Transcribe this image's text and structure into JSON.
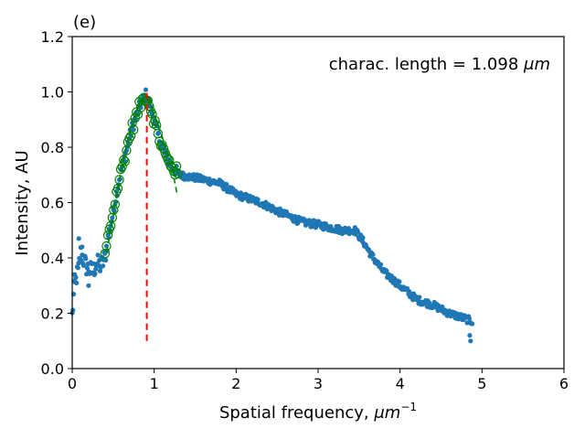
{
  "chart_data": {
    "type": "scatter",
    "panel_label": "(e)",
    "xlabel_text": "Spatial frequency, ",
    "xlabel_unit": "μm",
    "xlabel_exponent": "−1",
    "ylabel": "Intensity, AU",
    "annotation_prefix": "charac. length = 1.098 ",
    "annotation_unit": "μm",
    "xlim": [
      0,
      6
    ],
    "ylim": [
      0,
      1.2
    ],
    "xticks": [
      0,
      1,
      2,
      3,
      4,
      5,
      6
    ],
    "xtick_labels": [
      "0",
      "1",
      "2",
      "3",
      "4",
      "5",
      "6"
    ],
    "yticks": [
      0,
      0.2,
      0.4,
      0.6,
      0.8,
      1.0,
      1.2
    ],
    "ytick_labels": [
      "0.0",
      "0.2",
      "0.4",
      "0.6",
      "0.8",
      "1.0",
      "1.2"
    ],
    "grid": false,
    "colors": {
      "points": "#1f77b4",
      "fit_markers": "#008000",
      "fit_curve": "#008000",
      "peak_line": "#ff0000"
    },
    "peak_line": {
      "x": 0.91,
      "y_from": 0.1,
      "y_to": 1.0
    },
    "anchors": [
      [
        0.0,
        0.19
      ],
      [
        0.02,
        0.27
      ],
      [
        0.05,
        0.33
      ],
      [
        0.08,
        0.36
      ],
      [
        0.1,
        0.42
      ],
      [
        0.13,
        0.4
      ],
      [
        0.17,
        0.37
      ],
      [
        0.2,
        0.36
      ],
      [
        0.25,
        0.35
      ],
      [
        0.3,
        0.38
      ],
      [
        0.35,
        0.37
      ],
      [
        0.4,
        0.4
      ],
      [
        0.43,
        0.46
      ],
      [
        0.47,
        0.52
      ],
      [
        0.52,
        0.6
      ],
      [
        0.57,
        0.68
      ],
      [
        0.62,
        0.74
      ],
      [
        0.67,
        0.8
      ],
      [
        0.72,
        0.86
      ],
      [
        0.78,
        0.91
      ],
      [
        0.84,
        0.96
      ],
      [
        0.9,
        0.99
      ],
      [
        0.95,
        0.95
      ],
      [
        1.0,
        0.9
      ],
      [
        1.05,
        0.84
      ],
      [
        1.1,
        0.8
      ],
      [
        1.15,
        0.76
      ],
      [
        1.2,
        0.74
      ],
      [
        1.3,
        0.7
      ],
      [
        1.5,
        0.69
      ],
      [
        1.8,
        0.67
      ],
      [
        2.0,
        0.63
      ],
      [
        2.3,
        0.6
      ],
      [
        2.5,
        0.57
      ],
      [
        2.8,
        0.53
      ],
      [
        3.0,
        0.52
      ],
      [
        3.3,
        0.5
      ],
      [
        3.45,
        0.5
      ],
      [
        3.55,
        0.46
      ],
      [
        3.65,
        0.41
      ],
      [
        3.8,
        0.35
      ],
      [
        4.0,
        0.3
      ],
      [
        4.2,
        0.25
      ],
      [
        4.4,
        0.23
      ],
      [
        4.6,
        0.2
      ],
      [
        4.8,
        0.18
      ],
      [
        4.88,
        0.17
      ]
    ],
    "fit_x_range": [
      0.4,
      1.3
    ],
    "fit_curve": [
      [
        0.42,
        0.42
      ],
      [
        0.5,
        0.55
      ],
      [
        0.6,
        0.72
      ],
      [
        0.7,
        0.85
      ],
      [
        0.8,
        0.94
      ],
      [
        0.88,
        0.98
      ],
      [
        0.95,
        0.96
      ],
      [
        1.05,
        0.88
      ],
      [
        1.15,
        0.79
      ],
      [
        1.22,
        0.72
      ],
      [
        1.28,
        0.63
      ]
    ],
    "extra_points": [
      [
        4.85,
        0.12
      ],
      [
        4.86,
        0.1
      ],
      [
        0.03,
        0.34
      ],
      [
        0.08,
        0.47
      ],
      [
        0.12,
        0.44
      ],
      [
        0.2,
        0.3
      ]
    ]
  }
}
